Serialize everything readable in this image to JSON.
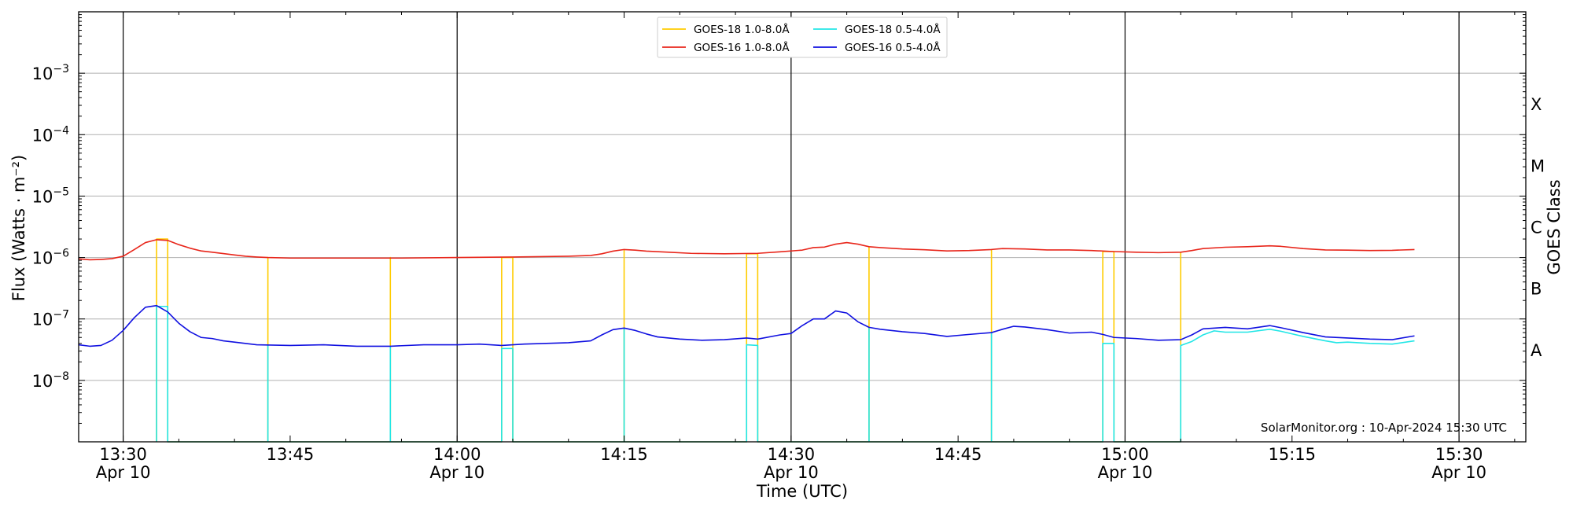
{
  "chart_data": {
    "type": "line",
    "x_range": [
      "13:26",
      "15:36"
    ],
    "y_scale": "log",
    "y_range": [
      1e-09,
      0.01
    ],
    "grid": true,
    "legend_position": "top-center",
    "xlabel": "Time (UTC)",
    "ylabel": "Flux (Watts · m⁻²)",
    "right_label": "GOES Class",
    "credit": "SolarMonitor.org : 10-Apr-2024 15:30 UTC",
    "y_ticks": [
      {
        "value": 1e-08,
        "base": "10",
        "exp": "−8"
      },
      {
        "value": 1e-07,
        "base": "10",
        "exp": "−7"
      },
      {
        "value": 1e-06,
        "base": "10",
        "exp": "−6"
      },
      {
        "value": 1e-05,
        "base": "10",
        "exp": "−5"
      },
      {
        "value": 0.0001,
        "base": "10",
        "exp": "−4"
      },
      {
        "value": 0.001,
        "base": "10",
        "exp": "−3"
      }
    ],
    "x_ticks": [
      {
        "time": "13:30",
        "label": "13:30",
        "sub": "Apr 10"
      },
      {
        "time": "13:45",
        "label": "13:45",
        "sub": ""
      },
      {
        "time": "14:00",
        "label": "14:00",
        "sub": "Apr 10"
      },
      {
        "time": "14:15",
        "label": "14:15",
        "sub": ""
      },
      {
        "time": "14:30",
        "label": "14:30",
        "sub": "Apr 10"
      },
      {
        "time": "14:45",
        "label": "14:45",
        "sub": ""
      },
      {
        "time": "15:00",
        "label": "15:00",
        "sub": "Apr 10"
      },
      {
        "time": "15:15",
        "label": "15:15",
        "sub": ""
      },
      {
        "time": "15:30",
        "label": "15:30",
        "sub": "Apr 10"
      }
    ],
    "hour_markers": [
      "13:30",
      "14:00",
      "14:30",
      "15:00",
      "15:30"
    ],
    "goes_classes": [
      {
        "label": "A",
        "value": 3.16e-08
      },
      {
        "label": "B",
        "value": 3.16e-07
      },
      {
        "label": "C",
        "value": 3.16e-06
      },
      {
        "label": "M",
        "value": 3.16e-05
      },
      {
        "label": "X",
        "value": 0.000316
      }
    ],
    "series": [
      {
        "name": "GOES-18 1.0-8.0Å",
        "color": "#ffcc00",
        "gap_value": 1e-09,
        "points": [
          [
            "13:33",
            1e-09
          ],
          [
            "13:33",
            2e-06
          ],
          [
            "13:34",
            2e-06
          ],
          [
            "13:34",
            1e-09
          ],
          [
            "13:43",
            1e-09
          ],
          [
            "13:43",
            1e-06
          ],
          [
            "13:43",
            1e-09
          ],
          [
            "13:54",
            1e-09
          ],
          [
            "13:54",
            1e-06
          ],
          [
            "13:54",
            1e-09
          ],
          [
            "14:04",
            1e-09
          ],
          [
            "14:04",
            1e-06
          ],
          [
            "14:05",
            1e-06
          ],
          [
            "14:05",
            1e-09
          ],
          [
            "14:15",
            1e-09
          ],
          [
            "14:15",
            1.35e-06
          ],
          [
            "14:15",
            1e-09
          ],
          [
            "14:26",
            1e-09
          ],
          [
            "14:26",
            1.15e-06
          ],
          [
            "14:27",
            1.15e-06
          ],
          [
            "14:27",
            1e-09
          ],
          [
            "14:37",
            1e-09
          ],
          [
            "14:37",
            1.5e-06
          ],
          [
            "14:37",
            1e-09
          ],
          [
            "14:48",
            1e-09
          ],
          [
            "14:48",
            1.35e-06
          ],
          [
            "14:48",
            1e-09
          ],
          [
            "14:58",
            1e-09
          ],
          [
            "14:58",
            1.25e-06
          ],
          [
            "14:59",
            1.25e-06
          ],
          [
            "14:59",
            1e-09
          ],
          [
            "15:05",
            1e-09
          ],
          [
            "15:05",
            1.2e-06
          ]
        ]
      },
      {
        "name": "GOES-16 1.0-8.0Å",
        "color": "#e8261b",
        "points": [
          [
            "13:26",
            9.5e-07
          ],
          [
            "13:27",
            9.2e-07
          ],
          [
            "13:28",
            9.3e-07
          ],
          [
            "13:29",
            9.6e-07
          ],
          [
            "13:30",
            1.05e-06
          ],
          [
            "13:31",
            1.35e-06
          ],
          [
            "13:32",
            1.75e-06
          ],
          [
            "13:33",
            1.95e-06
          ],
          [
            "13:34",
            1.9e-06
          ],
          [
            "13:35",
            1.62e-06
          ],
          [
            "13:36",
            1.42e-06
          ],
          [
            "13:37",
            1.28e-06
          ],
          [
            "13:38",
            1.22e-06
          ],
          [
            "13:39",
            1.16e-06
          ],
          [
            "13:40",
            1.1e-06
          ],
          [
            "13:41",
            1.05e-06
          ],
          [
            "13:42",
            1.02e-06
          ],
          [
            "13:43",
            1e-06
          ],
          [
            "13:45",
            9.8e-07
          ],
          [
            "13:50",
            9.8e-07
          ],
          [
            "13:55",
            9.8e-07
          ],
          [
            "14:00",
            1e-06
          ],
          [
            "14:05",
            1.02e-06
          ],
          [
            "14:10",
            1.05e-06
          ],
          [
            "14:12",
            1.08e-06
          ],
          [
            "14:13",
            1.15e-06
          ],
          [
            "14:14",
            1.27e-06
          ],
          [
            "14:15",
            1.35e-06
          ],
          [
            "14:16",
            1.32e-06
          ],
          [
            "14:17",
            1.27e-06
          ],
          [
            "14:19",
            1.22e-06
          ],
          [
            "14:21",
            1.17e-06
          ],
          [
            "14:24",
            1.15e-06
          ],
          [
            "14:27",
            1.17e-06
          ],
          [
            "14:29",
            1.24e-06
          ],
          [
            "14:31",
            1.32e-06
          ],
          [
            "14:32",
            1.45e-06
          ],
          [
            "14:33",
            1.48e-06
          ],
          [
            "14:34",
            1.65e-06
          ],
          [
            "14:35",
            1.75e-06
          ],
          [
            "14:36",
            1.65e-06
          ],
          [
            "14:37",
            1.5e-06
          ],
          [
            "14:38",
            1.45e-06
          ],
          [
            "14:40",
            1.38e-06
          ],
          [
            "14:42",
            1.34e-06
          ],
          [
            "14:44",
            1.28e-06
          ],
          [
            "14:46",
            1.3e-06
          ],
          [
            "14:48",
            1.35e-06
          ],
          [
            "14:49",
            1.4e-06
          ],
          [
            "14:51",
            1.38e-06
          ],
          [
            "14:53",
            1.33e-06
          ],
          [
            "14:55",
            1.33e-06
          ],
          [
            "14:57",
            1.3e-06
          ],
          [
            "14:59",
            1.25e-06
          ],
          [
            "15:01",
            1.22e-06
          ],
          [
            "15:03",
            1.2e-06
          ],
          [
            "15:05",
            1.22e-06
          ],
          [
            "15:06",
            1.3e-06
          ],
          [
            "15:07",
            1.4e-06
          ],
          [
            "15:09",
            1.47e-06
          ],
          [
            "15:11",
            1.5e-06
          ],
          [
            "15:13",
            1.55e-06
          ],
          [
            "15:14",
            1.52e-06
          ],
          [
            "15:16",
            1.4e-06
          ],
          [
            "15:18",
            1.33e-06
          ],
          [
            "15:20",
            1.32e-06
          ],
          [
            "15:22",
            1.3e-06
          ],
          [
            "15:24",
            1.31e-06
          ],
          [
            "15:26",
            1.35e-06
          ]
        ]
      },
      {
        "name": "GOES-18 0.5-4.0Å",
        "color": "#22e6e6",
        "gap_value": 1e-09,
        "points": [
          [
            "13:33",
            1e-09
          ],
          [
            "13:33",
            1.6e-07
          ],
          [
            "13:34",
            1.6e-07
          ],
          [
            "13:34",
            1e-09
          ],
          [
            "13:43",
            1e-09
          ],
          [
            "13:43",
            3.7e-08
          ],
          [
            "13:43",
            1e-09
          ],
          [
            "13:54",
            1e-09
          ],
          [
            "13:54",
            3.6e-08
          ],
          [
            "13:54",
            1e-09
          ],
          [
            "14:04",
            1e-09
          ],
          [
            "14:04",
            3.3e-08
          ],
          [
            "14:05",
            3.3e-08
          ],
          [
            "14:05",
            1e-09
          ],
          [
            "14:15",
            1e-09
          ],
          [
            "14:15",
            7e-08
          ],
          [
            "14:15",
            1e-09
          ],
          [
            "14:26",
            1e-09
          ],
          [
            "14:26",
            3.8e-08
          ],
          [
            "14:27",
            3.7e-08
          ],
          [
            "14:27",
            1e-09
          ],
          [
            "14:37",
            1e-09
          ],
          [
            "14:37",
            7e-08
          ],
          [
            "14:37",
            1e-09
          ],
          [
            "14:48",
            1e-09
          ],
          [
            "14:48",
            6e-08
          ],
          [
            "14:48",
            1e-09
          ],
          [
            "14:58",
            1e-09
          ],
          [
            "14:58",
            4e-08
          ],
          [
            "14:59",
            4e-08
          ],
          [
            "14:59",
            1e-09
          ],
          [
            "15:05",
            1e-09
          ],
          [
            "15:05",
            3.7e-08
          ],
          [
            "15:06",
            4.3e-08
          ],
          [
            "15:07",
            5.5e-08
          ],
          [
            "15:08",
            6.4e-08
          ],
          [
            "15:09",
            6.1e-08
          ],
          [
            "15:11",
            6.1e-08
          ],
          [
            "15:13",
            6.8e-08
          ],
          [
            "15:14",
            6.3e-08
          ],
          [
            "15:16",
            5.2e-08
          ],
          [
            "15:18",
            4.4e-08
          ],
          [
            "15:19",
            4.1e-08
          ],
          [
            "15:20",
            4.2e-08
          ],
          [
            "15:22",
            4e-08
          ],
          [
            "15:24",
            3.9e-08
          ],
          [
            "15:26",
            4.4e-08
          ]
        ]
      },
      {
        "name": "GOES-16 0.5-4.0Å",
        "color": "#1010e0",
        "points": [
          [
            "13:26",
            3.8e-08
          ],
          [
            "13:27",
            3.6e-08
          ],
          [
            "13:28",
            3.7e-08
          ],
          [
            "13:29",
            4.5e-08
          ],
          [
            "13:30",
            6.5e-08
          ],
          [
            "13:31",
            1.05e-07
          ],
          [
            "13:32",
            1.55e-07
          ],
          [
            "13:33",
            1.65e-07
          ],
          [
            "13:34",
            1.3e-07
          ],
          [
            "13:35",
            8.5e-08
          ],
          [
            "13:36",
            6.2e-08
          ],
          [
            "13:37",
            5e-08
          ],
          [
            "13:38",
            4.8e-08
          ],
          [
            "13:39",
            4.4e-08
          ],
          [
            "13:40",
            4.2e-08
          ],
          [
            "13:42",
            3.8e-08
          ],
          [
            "13:45",
            3.7e-08
          ],
          [
            "13:48",
            3.8e-08
          ],
          [
            "13:51",
            3.6e-08
          ],
          [
            "13:54",
            3.6e-08
          ],
          [
            "13:57",
            3.8e-08
          ],
          [
            "14:00",
            3.8e-08
          ],
          [
            "14:02",
            3.9e-08
          ],
          [
            "14:04",
            3.7e-08
          ],
          [
            "14:06",
            3.9e-08
          ],
          [
            "14:08",
            4e-08
          ],
          [
            "14:10",
            4.1e-08
          ],
          [
            "14:12",
            4.4e-08
          ],
          [
            "14:13",
            5.5e-08
          ],
          [
            "14:14",
            6.7e-08
          ],
          [
            "14:15",
            7.1e-08
          ],
          [
            "14:16",
            6.5e-08
          ],
          [
            "14:17",
            5.7e-08
          ],
          [
            "14:18",
            5.1e-08
          ],
          [
            "14:20",
            4.7e-08
          ],
          [
            "14:22",
            4.5e-08
          ],
          [
            "14:24",
            4.6e-08
          ],
          [
            "14:26",
            4.9e-08
          ],
          [
            "14:27",
            4.7e-08
          ],
          [
            "14:29",
            5.5e-08
          ],
          [
            "14:30",
            5.8e-08
          ],
          [
            "14:31",
            7.8e-08
          ],
          [
            "14:32",
            1e-07
          ],
          [
            "14:33",
            1e-07
          ],
          [
            "14:34",
            1.35e-07
          ],
          [
            "14:35",
            1.25e-07
          ],
          [
            "14:36",
            9e-08
          ],
          [
            "14:37",
            7.3e-08
          ],
          [
            "14:38",
            6.8e-08
          ],
          [
            "14:40",
            6.2e-08
          ],
          [
            "14:42",
            5.8e-08
          ],
          [
            "14:44",
            5.2e-08
          ],
          [
            "14:46",
            5.6e-08
          ],
          [
            "14:48",
            6e-08
          ],
          [
            "14:49",
            6.8e-08
          ],
          [
            "14:50",
            7.6e-08
          ],
          [
            "14:51",
            7.4e-08
          ],
          [
            "14:53",
            6.7e-08
          ],
          [
            "14:55",
            5.9e-08
          ],
          [
            "14:57",
            6.1e-08
          ],
          [
            "14:58",
            5.6e-08
          ],
          [
            "14:59",
            5e-08
          ],
          [
            "15:01",
            4.8e-08
          ],
          [
            "15:03",
            4.5e-08
          ],
          [
            "15:05",
            4.6e-08
          ],
          [
            "15:06",
            5.5e-08
          ],
          [
            "15:07",
            6.9e-08
          ],
          [
            "15:09",
            7.3e-08
          ],
          [
            "15:11",
            6.9e-08
          ],
          [
            "15:13",
            7.8e-08
          ],
          [
            "15:14",
            7.2e-08
          ],
          [
            "15:16",
            6e-08
          ],
          [
            "15:18",
            5.1e-08
          ],
          [
            "15:20",
            4.9e-08
          ],
          [
            "15:22",
            4.7e-08
          ],
          [
            "15:24",
            4.6e-08
          ],
          [
            "15:26",
            5.3e-08
          ]
        ]
      }
    ]
  }
}
